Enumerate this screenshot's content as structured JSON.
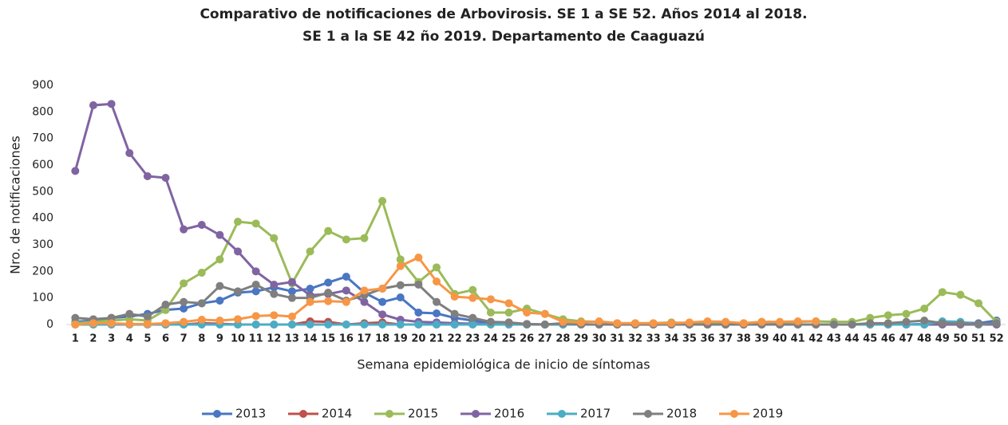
{
  "chart_data": {
    "type": "line",
    "title": [
      "Comparativo de notificaciones de Arbovirosis. SE 1 a SE 52. Años 2014 al 2018.",
      "SE 1 a la SE 42 ño 2019. Departamento de Caaguazú"
    ],
    "x_label": "Semana epidemiológica de inicio de síntomas",
    "y_label": "Nro. de notificaciones",
    "categories": [
      1,
      2,
      3,
      4,
      5,
      6,
      7,
      8,
      9,
      10,
      11,
      12,
      13,
      14,
      15,
      16,
      17,
      18,
      19,
      20,
      21,
      22,
      23,
      24,
      25,
      26,
      27,
      28,
      29,
      30,
      31,
      32,
      33,
      34,
      35,
      36,
      37,
      38,
      39,
      40,
      41,
      42,
      43,
      44,
      45,
      46,
      47,
      48,
      49,
      50,
      51,
      52
    ],
    "ylim": [
      0,
      900
    ],
    "yticks": [
      0,
      100,
      200,
      300,
      400,
      500,
      600,
      700,
      800,
      900
    ],
    "grid": false,
    "legend": "bottom",
    "series": [
      {
        "name": "2013",
        "color": "#4a76c2",
        "values": [
          10,
          15,
          25,
          30,
          40,
          55,
          60,
          80,
          90,
          120,
          125,
          140,
          125,
          135,
          158,
          180,
          120,
          85,
          102,
          45,
          42,
          25,
          15,
          5,
          3,
          2,
          0,
          0,
          0,
          0,
          0,
          0,
          0,
          0,
          0,
          0,
          0,
          0,
          0,
          0,
          0,
          0,
          0,
          0,
          0,
          0,
          0,
          2,
          10,
          8,
          5,
          15
        ]
      },
      {
        "name": "2014",
        "color": "#c0504d",
        "values": [
          0,
          0,
          0,
          0,
          0,
          0,
          0,
          5,
          3,
          0,
          0,
          0,
          0,
          12,
          10,
          0,
          5,
          8,
          0,
          0,
          0,
          0,
          0,
          0,
          0,
          0,
          0,
          0,
          0,
          0,
          0,
          0,
          0,
          0,
          0,
          0,
          0,
          0,
          0,
          0,
          0,
          0,
          0,
          0,
          0,
          0,
          0,
          0,
          0,
          0,
          0,
          0
        ]
      },
      {
        "name": "2015",
        "color": "#9bbb59",
        "values": [
          5,
          10,
          15,
          20,
          15,
          55,
          155,
          195,
          245,
          387,
          380,
          325,
          155,
          275,
          352,
          320,
          325,
          465,
          245,
          160,
          215,
          115,
          130,
          45,
          45,
          60,
          40,
          20,
          12,
          10,
          5,
          5,
          5,
          8,
          5,
          10,
          5,
          5,
          10,
          8,
          10,
          12,
          10,
          10,
          25,
          35,
          40,
          60,
          122,
          112,
          80,
          10
        ]
      },
      {
        "name": "2016",
        "color": "#8064a2",
        "values": [
          578,
          825,
          830,
          645,
          558,
          552,
          358,
          375,
          337,
          275,
          200,
          150,
          160,
          110,
          115,
          128,
          85,
          38,
          18,
          10,
          8,
          5,
          3,
          2,
          2,
          0,
          0,
          0,
          0,
          0,
          0,
          0,
          0,
          0,
          0,
          0,
          0,
          0,
          0,
          0,
          0,
          0,
          0,
          0,
          0,
          0,
          0,
          0,
          0,
          0,
          0,
          0
        ]
      },
      {
        "name": "2017",
        "color": "#4bacc6",
        "values": [
          0,
          0,
          0,
          0,
          0,
          0,
          0,
          0,
          0,
          0,
          0,
          0,
          0,
          0,
          0,
          0,
          0,
          0,
          0,
          0,
          0,
          0,
          0,
          0,
          0,
          0,
          0,
          0,
          0,
          0,
          0,
          0,
          0,
          0,
          0,
          0,
          0,
          0,
          0,
          0,
          0,
          0,
          0,
          0,
          0,
          0,
          0,
          0,
          12,
          10,
          0,
          5
        ]
      },
      {
        "name": "2018",
        "color": "#7f7f7f",
        "values": [
          25,
          20,
          25,
          40,
          30,
          75,
          85,
          80,
          145,
          125,
          150,
          115,
          100,
          100,
          120,
          90,
          110,
          135,
          148,
          150,
          85,
          40,
          25,
          10,
          8,
          2,
          0,
          5,
          0,
          0,
          0,
          0,
          0,
          0,
          0,
          0,
          0,
          0,
          0,
          0,
          0,
          0,
          0,
          0,
          5,
          5,
          10,
          15,
          5,
          3,
          2,
          5
        ]
      },
      {
        "name": "2019",
        "color": "#f79646",
        "values": [
          0,
          5,
          5,
          2,
          2,
          5,
          10,
          18,
          15,
          20,
          32,
          35,
          30,
          85,
          88,
          85,
          128,
          135,
          220,
          252,
          162,
          105,
          100,
          95,
          80,
          45,
          40,
          10,
          8,
          12,
          5,
          5,
          5,
          5,
          8,
          12,
          10,
          5,
          10,
          10,
          12,
          12,
          null,
          null,
          null,
          null,
          null,
          null,
          null,
          null,
          null,
          null
        ]
      }
    ]
  }
}
